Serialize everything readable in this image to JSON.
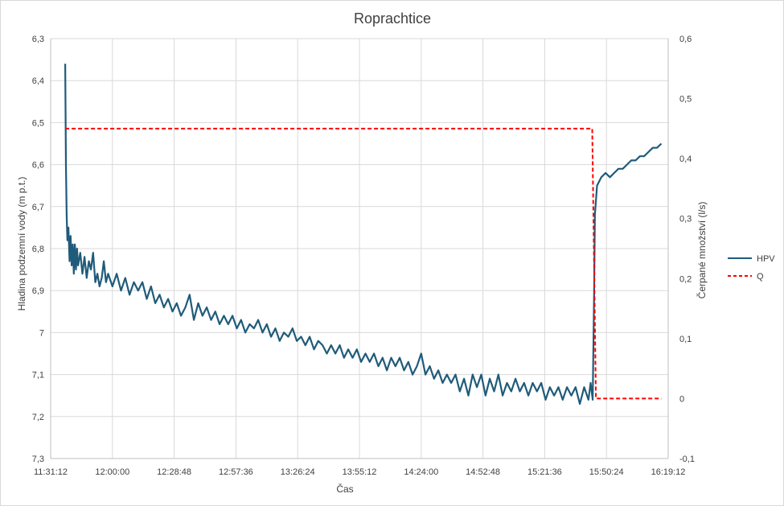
{
  "chart_data": {
    "type": "line",
    "title": "Roprachtice",
    "xlabel": "Čas",
    "ylabel": "Hladina podzemní vody (m p.t.)",
    "y2label": "Čerpané množství (l/s)",
    "x_tick_labels": [
      "11:31:12",
      "12:00:00",
      "12:28:48",
      "12:57:36",
      "13:26:24",
      "13:55:12",
      "14:24:00",
      "14:52:48",
      "15:21:36",
      "15:50:24",
      "16:19:12"
    ],
    "y_tick_labels": [
      "6,3",
      "6,4",
      "6,5",
      "6,6",
      "6,7",
      "6,8",
      "6,9",
      "7",
      "7,1",
      "7,2",
      "7,3"
    ],
    "y2_tick_labels": [
      "0,6",
      "0,5",
      "0,4",
      "0,3",
      "0,2",
      "0,1",
      "0",
      "-0,1"
    ],
    "xlim": [
      "11:31:12",
      "16:19:12"
    ],
    "ylim": [
      6.3,
      7.3
    ],
    "y_reversed": true,
    "y2lim": [
      -0.1,
      0.6
    ],
    "grid": true,
    "legend_position": "right",
    "series": [
      {
        "name": "HPV",
        "axis": "left",
        "color": "#1f5b7a",
        "style": "solid",
        "points": [
          [
            "11:38:00",
            6.36
          ],
          [
            "11:38:20",
            6.6
          ],
          [
            "11:38:40",
            6.72
          ],
          [
            "11:39:00",
            6.78
          ],
          [
            "11:39:30",
            6.75
          ],
          [
            "11:40:00",
            6.83
          ],
          [
            "11:40:30",
            6.77
          ],
          [
            "11:41:00",
            6.84
          ],
          [
            "11:41:30",
            6.79
          ],
          [
            "11:42:00",
            6.86
          ],
          [
            "11:42:30",
            6.79
          ],
          [
            "11:43:00",
            6.85
          ],
          [
            "11:43:30",
            6.8
          ],
          [
            "11:44:00",
            6.84
          ],
          [
            "11:45:00",
            6.81
          ],
          [
            "11:46:00",
            6.86
          ],
          [
            "11:47:00",
            6.82
          ],
          [
            "11:48:00",
            6.87
          ],
          [
            "11:49:00",
            6.83
          ],
          [
            "11:50:00",
            6.85
          ],
          [
            "11:51:00",
            6.81
          ],
          [
            "11:52:00",
            6.88
          ],
          [
            "11:53:00",
            6.86
          ],
          [
            "11:54:00",
            6.89
          ],
          [
            "11:55:00",
            6.87
          ],
          [
            "11:56:00",
            6.83
          ],
          [
            "11:57:00",
            6.88
          ],
          [
            "11:58:00",
            6.86
          ],
          [
            "12:00:00",
            6.89
          ],
          [
            "12:02:00",
            6.86
          ],
          [
            "12:04:00",
            6.9
          ],
          [
            "12:06:00",
            6.87
          ],
          [
            "12:08:00",
            6.91
          ],
          [
            "12:10:00",
            6.88
          ],
          [
            "12:12:00",
            6.9
          ],
          [
            "12:14:00",
            6.88
          ],
          [
            "12:16:00",
            6.92
          ],
          [
            "12:18:00",
            6.89
          ],
          [
            "12:20:00",
            6.93
          ],
          [
            "12:22:00",
            6.91
          ],
          [
            "12:24:00",
            6.94
          ],
          [
            "12:26:00",
            6.92
          ],
          [
            "12:28:00",
            6.95
          ],
          [
            "12:30:00",
            6.93
          ],
          [
            "12:32:00",
            6.96
          ],
          [
            "12:34:00",
            6.94
          ],
          [
            "12:36:00",
            6.91
          ],
          [
            "12:38:00",
            6.97
          ],
          [
            "12:40:00",
            6.93
          ],
          [
            "12:42:00",
            6.96
          ],
          [
            "12:44:00",
            6.94
          ],
          [
            "12:46:00",
            6.97
          ],
          [
            "12:48:00",
            6.95
          ],
          [
            "12:50:00",
            6.98
          ],
          [
            "12:52:00",
            6.96
          ],
          [
            "12:54:00",
            6.98
          ],
          [
            "12:56:00",
            6.96
          ],
          [
            "12:58:00",
            6.99
          ],
          [
            "13:00:00",
            6.97
          ],
          [
            "13:02:00",
            7.0
          ],
          [
            "13:04:00",
            6.98
          ],
          [
            "13:06:00",
            6.99
          ],
          [
            "13:08:00",
            6.97
          ],
          [
            "13:10:00",
            7.0
          ],
          [
            "13:12:00",
            6.98
          ],
          [
            "13:14:00",
            7.01
          ],
          [
            "13:16:00",
            6.99
          ],
          [
            "13:18:00",
            7.02
          ],
          [
            "13:20:00",
            7.0
          ],
          [
            "13:22:00",
            7.01
          ],
          [
            "13:24:00",
            6.99
          ],
          [
            "13:26:00",
            7.02
          ],
          [
            "13:28:00",
            7.01
          ],
          [
            "13:30:00",
            7.03
          ],
          [
            "13:32:00",
            7.01
          ],
          [
            "13:34:00",
            7.04
          ],
          [
            "13:36:00",
            7.02
          ],
          [
            "13:38:00",
            7.03
          ],
          [
            "13:40:00",
            7.05
          ],
          [
            "13:42:00",
            7.03
          ],
          [
            "13:44:00",
            7.05
          ],
          [
            "13:46:00",
            7.03
          ],
          [
            "13:48:00",
            7.06
          ],
          [
            "13:50:00",
            7.04
          ],
          [
            "13:52:00",
            7.06
          ],
          [
            "13:54:00",
            7.04
          ],
          [
            "13:56:00",
            7.07
          ],
          [
            "13:58:00",
            7.05
          ],
          [
            "14:00:00",
            7.07
          ],
          [
            "14:02:00",
            7.05
          ],
          [
            "14:04:00",
            7.08
          ],
          [
            "14:06:00",
            7.06
          ],
          [
            "14:08:00",
            7.09
          ],
          [
            "14:10:00",
            7.06
          ],
          [
            "14:12:00",
            7.08
          ],
          [
            "14:14:00",
            7.06
          ],
          [
            "14:16:00",
            7.09
          ],
          [
            "14:18:00",
            7.07
          ],
          [
            "14:20:00",
            7.1
          ],
          [
            "14:22:00",
            7.08
          ],
          [
            "14:24:00",
            7.05
          ],
          [
            "14:26:00",
            7.1
          ],
          [
            "14:28:00",
            7.08
          ],
          [
            "14:30:00",
            7.11
          ],
          [
            "14:32:00",
            7.09
          ],
          [
            "14:34:00",
            7.12
          ],
          [
            "14:36:00",
            7.1
          ],
          [
            "14:38:00",
            7.12
          ],
          [
            "14:40:00",
            7.1
          ],
          [
            "14:42:00",
            7.14
          ],
          [
            "14:44:00",
            7.11
          ],
          [
            "14:46:00",
            7.15
          ],
          [
            "14:48:00",
            7.1
          ],
          [
            "14:50:00",
            7.13
          ],
          [
            "14:52:00",
            7.1
          ],
          [
            "14:54:00",
            7.15
          ],
          [
            "14:56:00",
            7.11
          ],
          [
            "14:58:00",
            7.14
          ],
          [
            "15:00:00",
            7.1
          ],
          [
            "15:02:00",
            7.15
          ],
          [
            "15:04:00",
            7.12
          ],
          [
            "15:06:00",
            7.14
          ],
          [
            "15:08:00",
            7.11
          ],
          [
            "15:10:00",
            7.14
          ],
          [
            "15:12:00",
            7.12
          ],
          [
            "15:14:00",
            7.15
          ],
          [
            "15:16:00",
            7.12
          ],
          [
            "15:18:00",
            7.14
          ],
          [
            "15:20:00",
            7.12
          ],
          [
            "15:22:00",
            7.16
          ],
          [
            "15:24:00",
            7.13
          ],
          [
            "15:26:00",
            7.15
          ],
          [
            "15:28:00",
            7.13
          ],
          [
            "15:30:00",
            7.16
          ],
          [
            "15:32:00",
            7.13
          ],
          [
            "15:34:00",
            7.15
          ],
          [
            "15:36:00",
            7.13
          ],
          [
            "15:38:00",
            7.17
          ],
          [
            "15:40:00",
            7.13
          ],
          [
            "15:42:00",
            7.16
          ],
          [
            "15:43:00",
            7.12
          ],
          [
            "15:44:00",
            7.16
          ],
          [
            "15:44:40",
            6.9
          ],
          [
            "15:45:00",
            6.72
          ],
          [
            "15:46:00",
            6.65
          ],
          [
            "15:48:00",
            6.63
          ],
          [
            "15:50:00",
            6.62
          ],
          [
            "15:52:00",
            6.63
          ],
          [
            "15:54:00",
            6.62
          ],
          [
            "15:56:00",
            6.61
          ],
          [
            "15:58:00",
            6.61
          ],
          [
            "16:00:00",
            6.6
          ],
          [
            "16:02:00",
            6.59
          ],
          [
            "16:04:00",
            6.59
          ],
          [
            "16:06:00",
            6.58
          ],
          [
            "16:08:00",
            6.58
          ],
          [
            "16:10:00",
            6.57
          ],
          [
            "16:12:00",
            6.56
          ],
          [
            "16:14:00",
            6.56
          ],
          [
            "16:16:00",
            6.55
          ]
        ]
      },
      {
        "name": "Q",
        "axis": "right",
        "color": "#ff0000",
        "style": "dashed",
        "points": [
          [
            "11:38:00",
            0.45
          ],
          [
            "15:43:45",
            0.45
          ],
          [
            "15:45:30",
            0.0
          ],
          [
            "16:16:00",
            0.0
          ]
        ]
      }
    ]
  }
}
